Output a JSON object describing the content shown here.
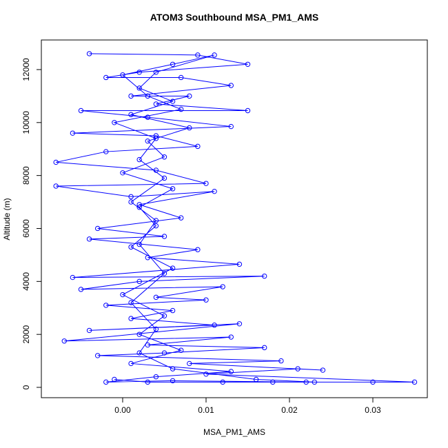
{
  "chart_data": {
    "type": "line",
    "title": "ATOM3 Southbound MSA_PM1_AMS",
    "x_label": "MSA_PM1_AMS",
    "y_label": "Altitude (m)",
    "xlim": [
      -0.00975,
      0.03653
    ],
    "ylim": [
      -390,
      13118
    ],
    "xticks": [
      {
        "value": 0,
        "label": "0.00"
      },
      0.01,
      0.02,
      0.03
    ],
    "yticks": [
      0,
      2000,
      4000,
      6000,
      8000,
      10000,
      12000
    ],
    "series": [
      {
        "color": "#0000ff",
        "x": [
          -0.004,
          0.009,
          0.015,
          0.002,
          -0.002,
          0.007,
          0.013,
          0.001,
          0.008,
          0.004,
          0.015,
          -0.005,
          0.003,
          0.013,
          -0.006,
          0.004,
          0.009,
          -0.002,
          -0.008,
          0.004,
          0.01,
          -0.008,
          0.001,
          0.011,
          0.002,
          0.007,
          -0.003,
          0.005,
          -0.004,
          0.009,
          0.003,
          0.014,
          -0.006,
          0.017,
          0.002,
          -0.005,
          0.012,
          0.004,
          0.01,
          -0.002,
          0.006,
          0.001,
          0.011,
          -0.004,
          0.014,
          -0.007,
          0.013,
          0.003,
          0.017,
          0.005,
          -0.003,
          0.019,
          0.008,
          0.024,
          0.021,
          0.01,
          0.035,
          0.03,
          0.018,
          0.022,
          0.006,
          -0.002,
          0.004,
          0.013,
          0.001,
          0.007,
          0.002,
          0.005,
          0.0,
          0.006,
          0.001,
          0.004,
          0.002,
          0.006,
          0.0,
          0.005,
          0.003,
          0.008,
          0.001,
          0.006,
          0.002,
          0.004,
          0.011,
          0.006,
          0.0,
          0.003,
          0.007,
          -0.001,
          0.004,
          0.002,
          0.005,
          0.001,
          0.004,
          0.002,
          0.005,
          0.001,
          0.004,
          0.002,
          0.006,
          0.016,
          0.023,
          0.012,
          0.003,
          -0.001
        ],
        "values": [
          12600,
          12550,
          12200,
          11900,
          11700,
          11700,
          11400,
          11000,
          11000,
          10700,
          10450,
          10450,
          10200,
          9850,
          9600,
          9500,
          9100,
          8900,
          8500,
          8200,
          7700,
          7600,
          7200,
          7400,
          6900,
          6400,
          6000,
          5700,
          5600,
          5200,
          4900,
          4650,
          4150,
          4200,
          4000,
          3700,
          3800,
          3400,
          3300,
          3100,
          2900,
          2600,
          2350,
          2150,
          2400,
          1750,
          1900,
          1600,
          1500,
          1300,
          1200,
          1000,
          900,
          650,
          700,
          500,
          200,
          200,
          200,
          200,
          250,
          200,
          400,
          600,
          900,
          1400,
          2000,
          2700,
          3500,
          4500,
          5300,
          6100,
          6800,
          7500,
          8100,
          8700,
          9300,
          9800,
          10300,
          10800,
          11300,
          11900,
          12550,
          12200,
          11800,
          11000,
          10500,
          10000,
          9400,
          8600,
          7900,
          7000,
          6300,
          5400,
          4300,
          3200,
          2200,
          1300,
          700,
          300,
          200,
          200,
          200,
          300
        ]
      }
    ]
  }
}
